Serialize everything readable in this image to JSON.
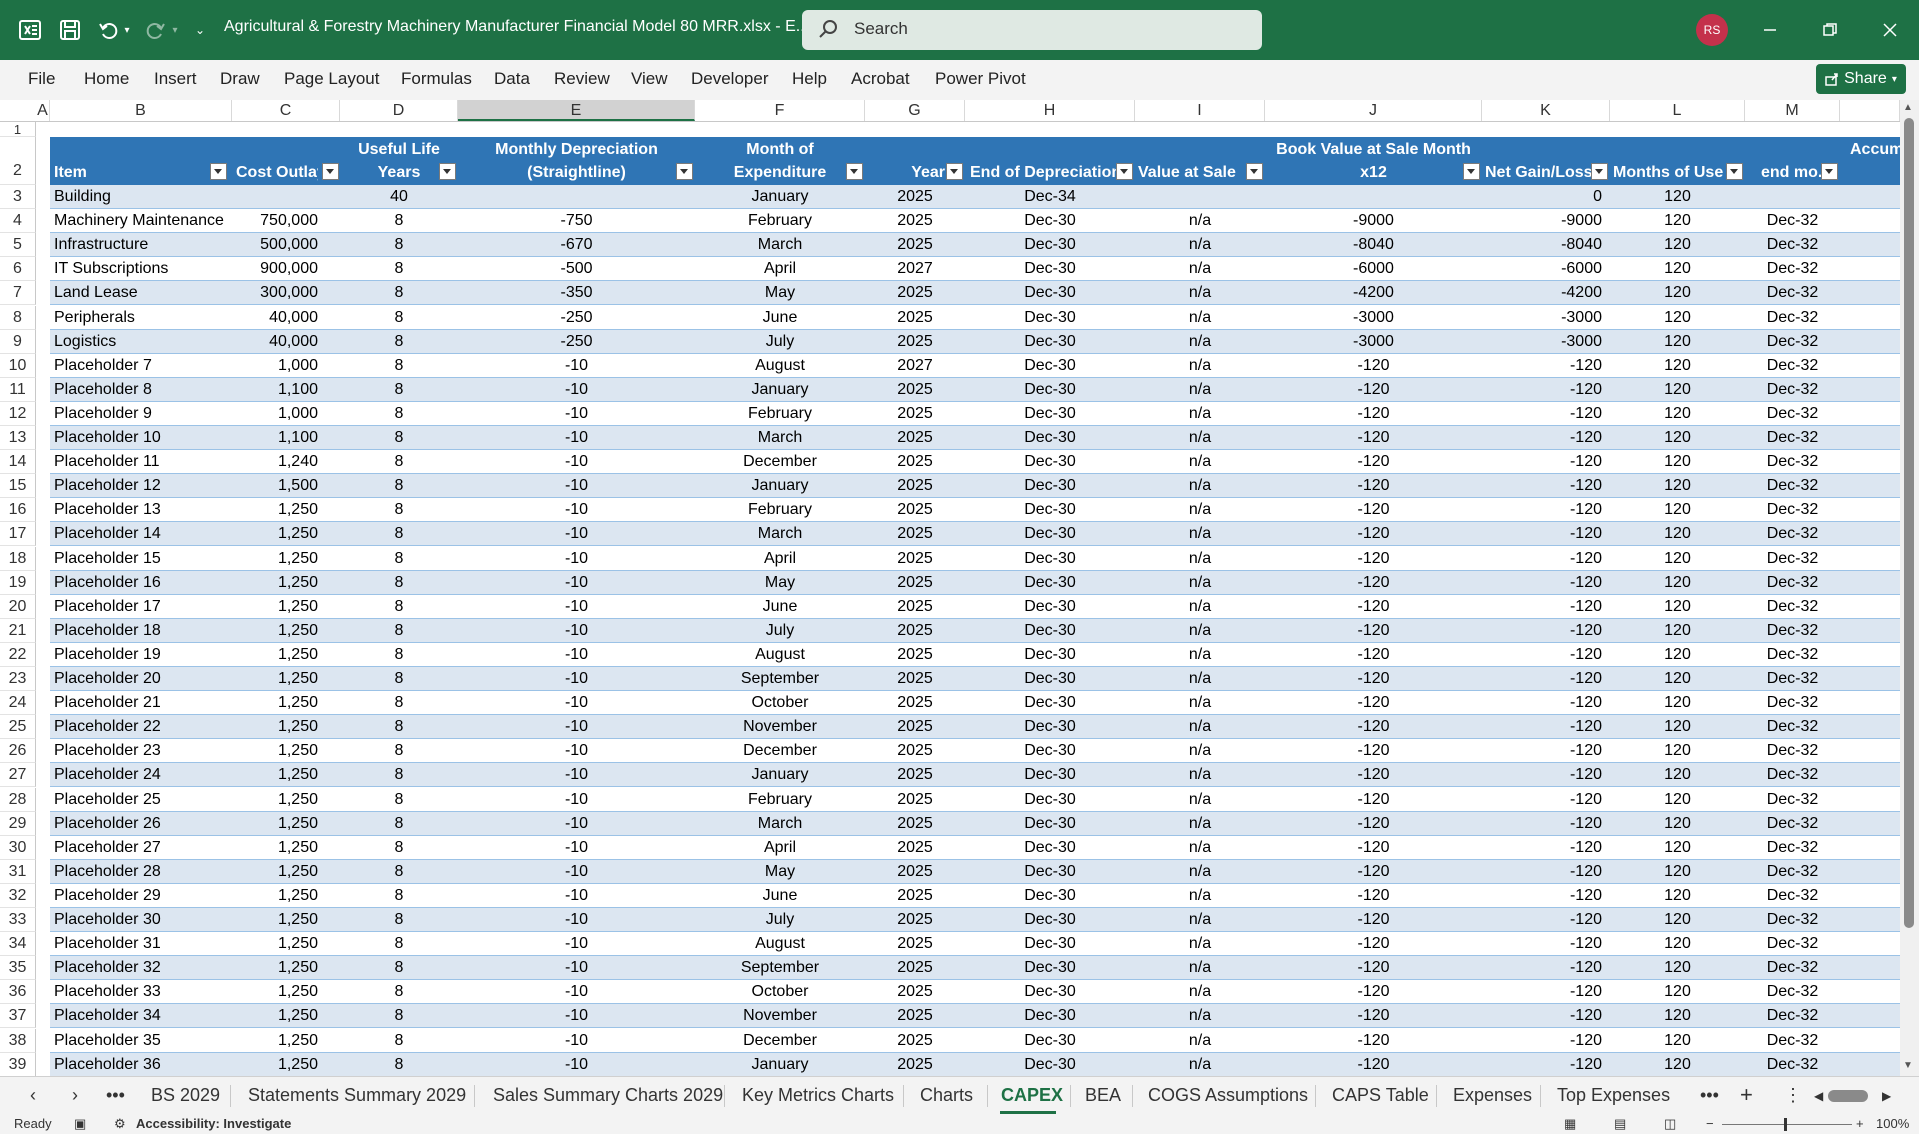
{
  "titlebar": {
    "doc_title": "Agricultural & Forestry Machinery Manufacturer Financial Model 80 MRR.xlsx  -  E...",
    "search_placeholder": "Search",
    "avatar": "RS"
  },
  "menu": [
    "File",
    "Home",
    "Insert",
    "Draw",
    "Page Layout",
    "Formulas",
    "Data",
    "Review",
    "View",
    "Developer",
    "Help",
    "Acrobat",
    "Power Pivot"
  ],
  "share_label": "Share",
  "columns": [
    "A",
    "B",
    "C",
    "D",
    "E",
    "F",
    "G",
    "H",
    "I",
    "J",
    "K",
    "L",
    "M"
  ],
  "headers": {
    "item": "Item",
    "cost": "Cost Outlay",
    "life_line1": "Useful Life",
    "life_line2": "Years",
    "dep_line1": "Monthly Depreciation",
    "dep_line2": "(Straightline)",
    "month_line1": "Month of",
    "month_line2": "Expenditure",
    "year": "Year",
    "end_dep": "End of Depreciation",
    "value_sale": "Value at Sale",
    "book_line1": "Book Value at Sale Month",
    "book_line2": "x12",
    "net": "Net Gain/Loss",
    "months_use": "Months of Use",
    "accum_line1": "Accum",
    "accum_line2": "end mo."
  },
  "row_numbers": [
    "1",
    "2",
    "3",
    "4",
    "5",
    "6",
    "7",
    "8",
    "9",
    "10",
    "11",
    "12",
    "13",
    "14",
    "15",
    "16",
    "17",
    "18",
    "19",
    "20",
    "21",
    "22",
    "23",
    "24",
    "25",
    "26",
    "27",
    "28",
    "29",
    "30",
    "31",
    "32",
    "33",
    "34",
    "35",
    "36",
    "37",
    "38",
    "39"
  ],
  "rows": [
    {
      "item": "Building",
      "cost": "",
      "life": "40",
      "dep": "",
      "month": "January",
      "year": "2025",
      "end": "Dec-34",
      "value": "",
      "book": "",
      "net": "0",
      "months": "120",
      "accum": ""
    },
    {
      "item": "Machinery Maintenance",
      "cost": "750,000",
      "life": "8",
      "dep": "-750",
      "month": "February",
      "year": "2025",
      "end": "Dec-30",
      "value": "n/a",
      "book": "-9000",
      "net": "-9000",
      "months": "120",
      "accum": "Dec-32"
    },
    {
      "item": "Infrastructure",
      "cost": "500,000",
      "life": "8",
      "dep": "-670",
      "month": "March",
      "year": "2025",
      "end": "Dec-30",
      "value": "n/a",
      "book": "-8040",
      "net": "-8040",
      "months": "120",
      "accum": "Dec-32"
    },
    {
      "item": "IT Subscriptions",
      "cost": "900,000",
      "life": "8",
      "dep": "-500",
      "month": "April",
      "year": "2027",
      "end": "Dec-30",
      "value": "n/a",
      "book": "-6000",
      "net": "-6000",
      "months": "120",
      "accum": "Dec-32"
    },
    {
      "item": "Land Lease",
      "cost": "300,000",
      "life": "8",
      "dep": "-350",
      "month": "May",
      "year": "2025",
      "end": "Dec-30",
      "value": "n/a",
      "book": "-4200",
      "net": "-4200",
      "months": "120",
      "accum": "Dec-32"
    },
    {
      "item": "Peripherals",
      "cost": "40,000",
      "life": "8",
      "dep": "-250",
      "month": "June",
      "year": "2025",
      "end": "Dec-30",
      "value": "n/a",
      "book": "-3000",
      "net": "-3000",
      "months": "120",
      "accum": "Dec-32"
    },
    {
      "item": "Logistics",
      "cost": "40,000",
      "life": "8",
      "dep": "-250",
      "month": "July",
      "year": "2025",
      "end": "Dec-30",
      "value": "n/a",
      "book": "-3000",
      "net": "-3000",
      "months": "120",
      "accum": "Dec-32"
    },
    {
      "item": "Placeholder 7",
      "cost": "1,000",
      "life": "8",
      "dep": "-10",
      "month": "August",
      "year": "2027",
      "end": "Dec-30",
      "value": "n/a",
      "book": "-120",
      "net": "-120",
      "months": "120",
      "accum": "Dec-32"
    },
    {
      "item": "Placeholder 8",
      "cost": "1,100",
      "life": "8",
      "dep": "-10",
      "month": "January",
      "year": "2025",
      "end": "Dec-30",
      "value": "n/a",
      "book": "-120",
      "net": "-120",
      "months": "120",
      "accum": "Dec-32"
    },
    {
      "item": "Placeholder 9",
      "cost": "1,000",
      "life": "8",
      "dep": "-10",
      "month": "February",
      "year": "2025",
      "end": "Dec-30",
      "value": "n/a",
      "book": "-120",
      "net": "-120",
      "months": "120",
      "accum": "Dec-32"
    },
    {
      "item": "Placeholder 10",
      "cost": "1,100",
      "life": "8",
      "dep": "-10",
      "month": "March",
      "year": "2025",
      "end": "Dec-30",
      "value": "n/a",
      "book": "-120",
      "net": "-120",
      "months": "120",
      "accum": "Dec-32"
    },
    {
      "item": "Placeholder 11",
      "cost": "1,240",
      "life": "8",
      "dep": "-10",
      "month": "December",
      "year": "2025",
      "end": "Dec-30",
      "value": "n/a",
      "book": "-120",
      "net": "-120",
      "months": "120",
      "accum": "Dec-32"
    },
    {
      "item": "Placeholder 12",
      "cost": "1,500",
      "life": "8",
      "dep": "-10",
      "month": "January",
      "year": "2025",
      "end": "Dec-30",
      "value": "n/a",
      "book": "-120",
      "net": "-120",
      "months": "120",
      "accum": "Dec-32"
    },
    {
      "item": "Placeholder 13",
      "cost": "1,250",
      "life": "8",
      "dep": "-10",
      "month": "February",
      "year": "2025",
      "end": "Dec-30",
      "value": "n/a",
      "book": "-120",
      "net": "-120",
      "months": "120",
      "accum": "Dec-32"
    },
    {
      "item": "Placeholder 14",
      "cost": "1,250",
      "life": "8",
      "dep": "-10",
      "month": "March",
      "year": "2025",
      "end": "Dec-30",
      "value": "n/a",
      "book": "-120",
      "net": "-120",
      "months": "120",
      "accum": "Dec-32"
    },
    {
      "item": "Placeholder 15",
      "cost": "1,250",
      "life": "8",
      "dep": "-10",
      "month": "April",
      "year": "2025",
      "end": "Dec-30",
      "value": "n/a",
      "book": "-120",
      "net": "-120",
      "months": "120",
      "accum": "Dec-32"
    },
    {
      "item": "Placeholder 16",
      "cost": "1,250",
      "life": "8",
      "dep": "-10",
      "month": "May",
      "year": "2025",
      "end": "Dec-30",
      "value": "n/a",
      "book": "-120",
      "net": "-120",
      "months": "120",
      "accum": "Dec-32"
    },
    {
      "item": "Placeholder 17",
      "cost": "1,250",
      "life": "8",
      "dep": "-10",
      "month": "June",
      "year": "2025",
      "end": "Dec-30",
      "value": "n/a",
      "book": "-120",
      "net": "-120",
      "months": "120",
      "accum": "Dec-32"
    },
    {
      "item": "Placeholder 18",
      "cost": "1,250",
      "life": "8",
      "dep": "-10",
      "month": "July",
      "year": "2025",
      "end": "Dec-30",
      "value": "n/a",
      "book": "-120",
      "net": "-120",
      "months": "120",
      "accum": "Dec-32"
    },
    {
      "item": "Placeholder 19",
      "cost": "1,250",
      "life": "8",
      "dep": "-10",
      "month": "August",
      "year": "2025",
      "end": "Dec-30",
      "value": "n/a",
      "book": "-120",
      "net": "-120",
      "months": "120",
      "accum": "Dec-32"
    },
    {
      "item": "Placeholder 20",
      "cost": "1,250",
      "life": "8",
      "dep": "-10",
      "month": "September",
      "year": "2025",
      "end": "Dec-30",
      "value": "n/a",
      "book": "-120",
      "net": "-120",
      "months": "120",
      "accum": "Dec-32"
    },
    {
      "item": "Placeholder 21",
      "cost": "1,250",
      "life": "8",
      "dep": "-10",
      "month": "October",
      "year": "2025",
      "end": "Dec-30",
      "value": "n/a",
      "book": "-120",
      "net": "-120",
      "months": "120",
      "accum": "Dec-32"
    },
    {
      "item": "Placeholder 22",
      "cost": "1,250",
      "life": "8",
      "dep": "-10",
      "month": "November",
      "year": "2025",
      "end": "Dec-30",
      "value": "n/a",
      "book": "-120",
      "net": "-120",
      "months": "120",
      "accum": "Dec-32"
    },
    {
      "item": "Placeholder 23",
      "cost": "1,250",
      "life": "8",
      "dep": "-10",
      "month": "December",
      "year": "2025",
      "end": "Dec-30",
      "value": "n/a",
      "book": "-120",
      "net": "-120",
      "months": "120",
      "accum": "Dec-32"
    },
    {
      "item": "Placeholder 24",
      "cost": "1,250",
      "life": "8",
      "dep": "-10",
      "month": "January",
      "year": "2025",
      "end": "Dec-30",
      "value": "n/a",
      "book": "-120",
      "net": "-120",
      "months": "120",
      "accum": "Dec-32"
    },
    {
      "item": "Placeholder 25",
      "cost": "1,250",
      "life": "8",
      "dep": "-10",
      "month": "February",
      "year": "2025",
      "end": "Dec-30",
      "value": "n/a",
      "book": "-120",
      "net": "-120",
      "months": "120",
      "accum": "Dec-32"
    },
    {
      "item": "Placeholder 26",
      "cost": "1,250",
      "life": "8",
      "dep": "-10",
      "month": "March",
      "year": "2025",
      "end": "Dec-30",
      "value": "n/a",
      "book": "-120",
      "net": "-120",
      "months": "120",
      "accum": "Dec-32"
    },
    {
      "item": "Placeholder 27",
      "cost": "1,250",
      "life": "8",
      "dep": "-10",
      "month": "April",
      "year": "2025",
      "end": "Dec-30",
      "value": "n/a",
      "book": "-120",
      "net": "-120",
      "months": "120",
      "accum": "Dec-32"
    },
    {
      "item": "Placeholder 28",
      "cost": "1,250",
      "life": "8",
      "dep": "-10",
      "month": "May",
      "year": "2025",
      "end": "Dec-30",
      "value": "n/a",
      "book": "-120",
      "net": "-120",
      "months": "120",
      "accum": "Dec-32"
    },
    {
      "item": "Placeholder 29",
      "cost": "1,250",
      "life": "8",
      "dep": "-10",
      "month": "June",
      "year": "2025",
      "end": "Dec-30",
      "value": "n/a",
      "book": "-120",
      "net": "-120",
      "months": "120",
      "accum": "Dec-32"
    },
    {
      "item": "Placeholder 30",
      "cost": "1,250",
      "life": "8",
      "dep": "-10",
      "month": "July",
      "year": "2025",
      "end": "Dec-30",
      "value": "n/a",
      "book": "-120",
      "net": "-120",
      "months": "120",
      "accum": "Dec-32"
    },
    {
      "item": "Placeholder 31",
      "cost": "1,250",
      "life": "8",
      "dep": "-10",
      "month": "August",
      "year": "2025",
      "end": "Dec-30",
      "value": "n/a",
      "book": "-120",
      "net": "-120",
      "months": "120",
      "accum": "Dec-32"
    },
    {
      "item": "Placeholder 32",
      "cost": "1,250",
      "life": "8",
      "dep": "-10",
      "month": "September",
      "year": "2025",
      "end": "Dec-30",
      "value": "n/a",
      "book": "-120",
      "net": "-120",
      "months": "120",
      "accum": "Dec-32"
    },
    {
      "item": "Placeholder 33",
      "cost": "1,250",
      "life": "8",
      "dep": "-10",
      "month": "October",
      "year": "2025",
      "end": "Dec-30",
      "value": "n/a",
      "book": "-120",
      "net": "-120",
      "months": "120",
      "accum": "Dec-32"
    },
    {
      "item": "Placeholder 34",
      "cost": "1,250",
      "life": "8",
      "dep": "-10",
      "month": "November",
      "year": "2025",
      "end": "Dec-30",
      "value": "n/a",
      "book": "-120",
      "net": "-120",
      "months": "120",
      "accum": "Dec-32"
    },
    {
      "item": "Placeholder 35",
      "cost": "1,250",
      "life": "8",
      "dep": "-10",
      "month": "December",
      "year": "2025",
      "end": "Dec-30",
      "value": "n/a",
      "book": "-120",
      "net": "-120",
      "months": "120",
      "accum": "Dec-32"
    },
    {
      "item": "Placeholder 36",
      "cost": "1,250",
      "life": "8",
      "dep": "-10",
      "month": "January",
      "year": "2025",
      "end": "Dec-30",
      "value": "n/a",
      "book": "-120",
      "net": "-120",
      "months": "120",
      "accum": "Dec-32"
    }
  ],
  "sheet_tabs": [
    "BS 2029",
    "Statements Summary 2029",
    "Sales Summary Charts 2029",
    "Key Metrics Charts",
    "Charts",
    "CAPEX",
    "BEA",
    "COGS Assumptions",
    "CAPS Table",
    "Expenses",
    "Top Expenses"
  ],
  "active_tab": "CAPEX",
  "status": {
    "ready": "Ready",
    "accessibility": "Accessibility: Investigate",
    "zoom": "100%"
  },
  "colors": {
    "excel_green": "#1e7145",
    "header_blue": "#2f75b5",
    "band_light": "#dce6f1"
  }
}
